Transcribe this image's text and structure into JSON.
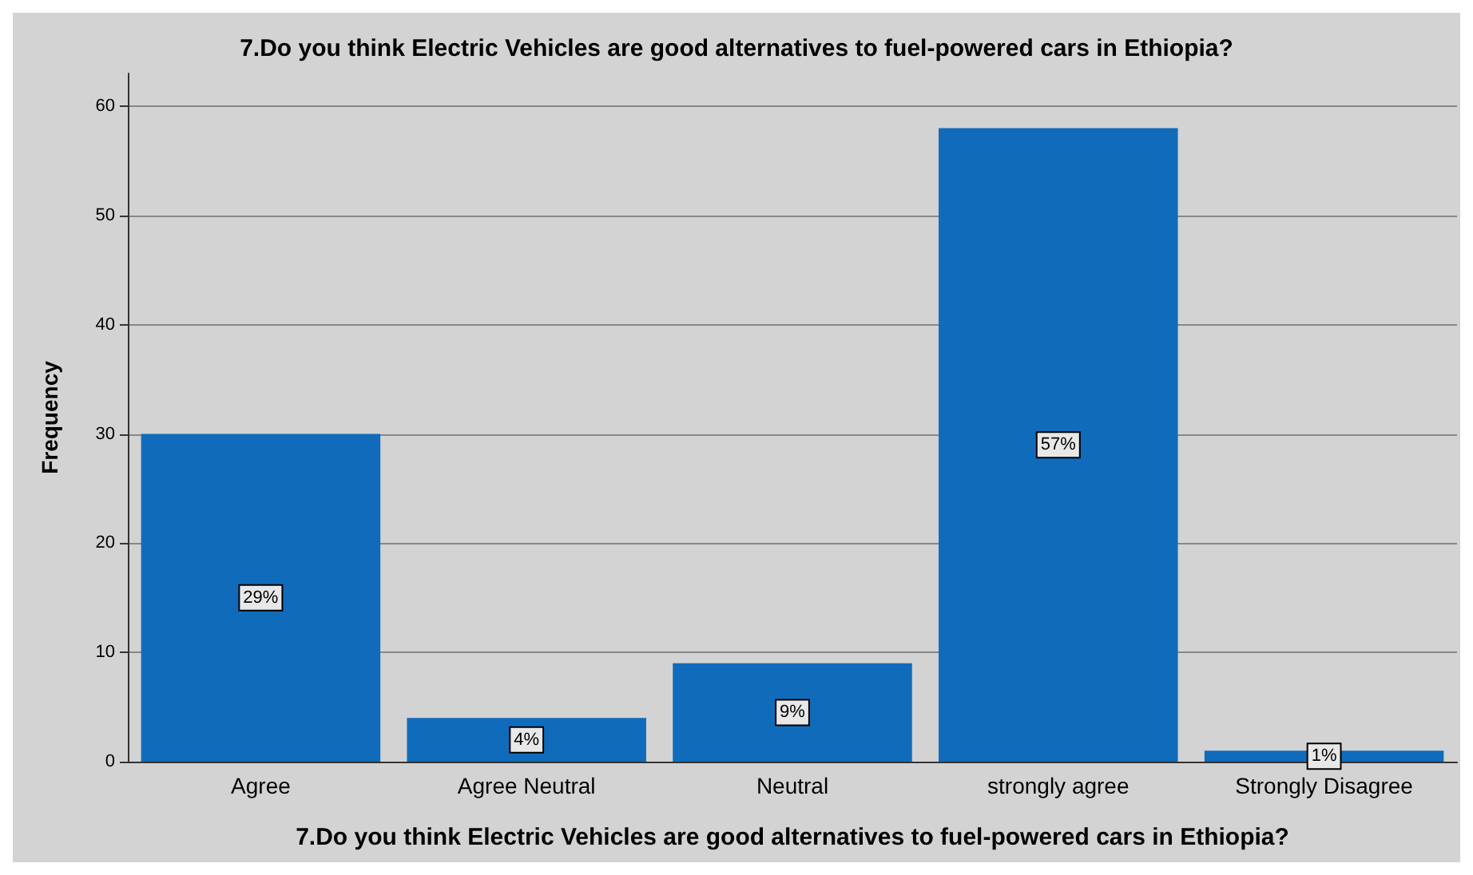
{
  "chart_data": {
    "type": "bar",
    "title": "7.Do you think Electric Vehicles are good alternatives to fuel-powered cars in Ethiopia?",
    "xlabel": "7.Do you think Electric Vehicles are good alternatives to fuel-powered cars in Ethiopia?",
    "ylabel": "Frequency",
    "categories": [
      "Agree",
      "Agree Neutral",
      "Neutral",
      "strongly agree",
      "Strongly Disagree"
    ],
    "values": [
      30,
      4,
      9,
      58,
      1
    ],
    "annotations": [
      {
        "text": "29%",
        "x": "Agree",
        "y": 15
      },
      {
        "text": "4%",
        "x": "Agree Neutral",
        "y": 2
      },
      {
        "text": "9%",
        "x": "Neutral",
        "y": 4.5
      },
      {
        "text": "57%",
        "x": "strongly agree",
        "y": 29
      },
      {
        "text": "1%",
        "x": "Strongly Disagree",
        "y": 0.5
      }
    ],
    "color": "#106cbb",
    "ylim": [
      0,
      63
    ],
    "yticks": [
      0,
      10,
      20,
      30,
      40,
      50,
      60
    ],
    "grid": "y"
  }
}
